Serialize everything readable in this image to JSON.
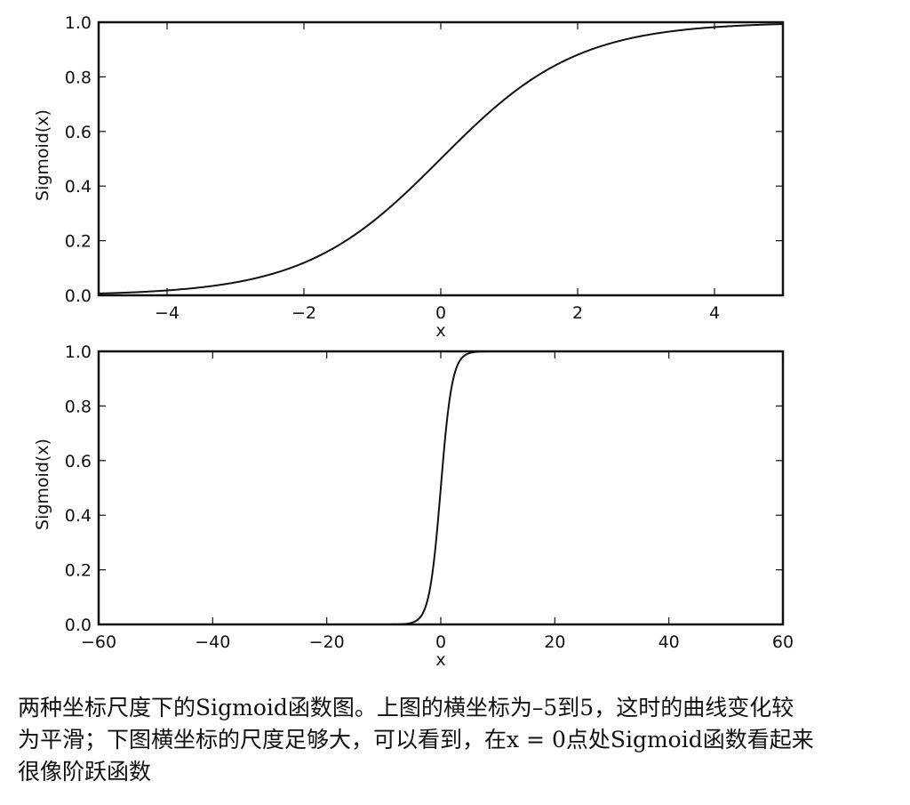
{
  "chart_data": [
    {
      "type": "line",
      "title": "",
      "xlabel": "x",
      "ylabel": "Sigmoid(x)",
      "xlim": [
        -5,
        5
      ],
      "ylim": [
        0.0,
        1.0
      ],
      "xticks": [
        -4,
        -2,
        0,
        2,
        4
      ],
      "xtick_labels": [
        "−4",
        "−2",
        "0",
        "2",
        "4"
      ],
      "yticks": [
        0.0,
        0.2,
        0.4,
        0.6,
        0.8,
        1.0
      ],
      "ytick_labels": [
        "0.0",
        "0.2",
        "0.4",
        "0.6",
        "0.8",
        "1.0"
      ],
      "grid": false,
      "series": [
        {
          "name": "Sigmoid(x)",
          "function": "1/(1+exp(-x))",
          "x": [
            -5,
            -4,
            -3,
            -2,
            -1,
            0,
            1,
            2,
            3,
            4,
            5
          ],
          "values": [
            0.007,
            0.018,
            0.047,
            0.119,
            0.269,
            0.5,
            0.731,
            0.881,
            0.953,
            0.982,
            0.993
          ]
        }
      ]
    },
    {
      "type": "line",
      "title": "",
      "xlabel": "x",
      "ylabel": "Sigmoid(x)",
      "xlim": [
        -60,
        60
      ],
      "ylim": [
        0.0,
        1.0
      ],
      "xticks": [
        -60,
        -40,
        -20,
        0,
        20,
        40,
        60
      ],
      "xtick_labels": [
        "−60",
        "−40",
        "−20",
        "0",
        "20",
        "40",
        "60"
      ],
      "yticks": [
        0.0,
        0.2,
        0.4,
        0.6,
        0.8,
        1.0
      ],
      "ytick_labels": [
        "0.0",
        "0.2",
        "0.4",
        "0.6",
        "0.8",
        "1.0"
      ],
      "grid": false,
      "series": [
        {
          "name": "Sigmoid(x)",
          "function": "1/(1+exp(-x))",
          "x": [
            -60,
            -40,
            -20,
            -10,
            -5,
            -3,
            -2,
            -1,
            0,
            1,
            2,
            3,
            5,
            10,
            20,
            40,
            60
          ],
          "values": [
            0.0,
            0.0,
            0.0,
            0.0,
            0.007,
            0.047,
            0.119,
            0.269,
            0.5,
            0.731,
            0.881,
            0.953,
            0.993,
            1.0,
            1.0,
            1.0,
            1.0
          ]
        }
      ]
    }
  ],
  "caption": {
    "lines": [
      "两种坐标尺度下的Sigmoid函数图。上图的横坐标为–5到5，这时的曲线变化较",
      "为平滑；下图横坐标的尺度足够大，可以看到，在x = 0点处Sigmoid函数看起来",
      "很像阶跃函数"
    ]
  },
  "colors": {
    "line": "#111111",
    "axes": "#111111",
    "background": "#ffffff"
  }
}
